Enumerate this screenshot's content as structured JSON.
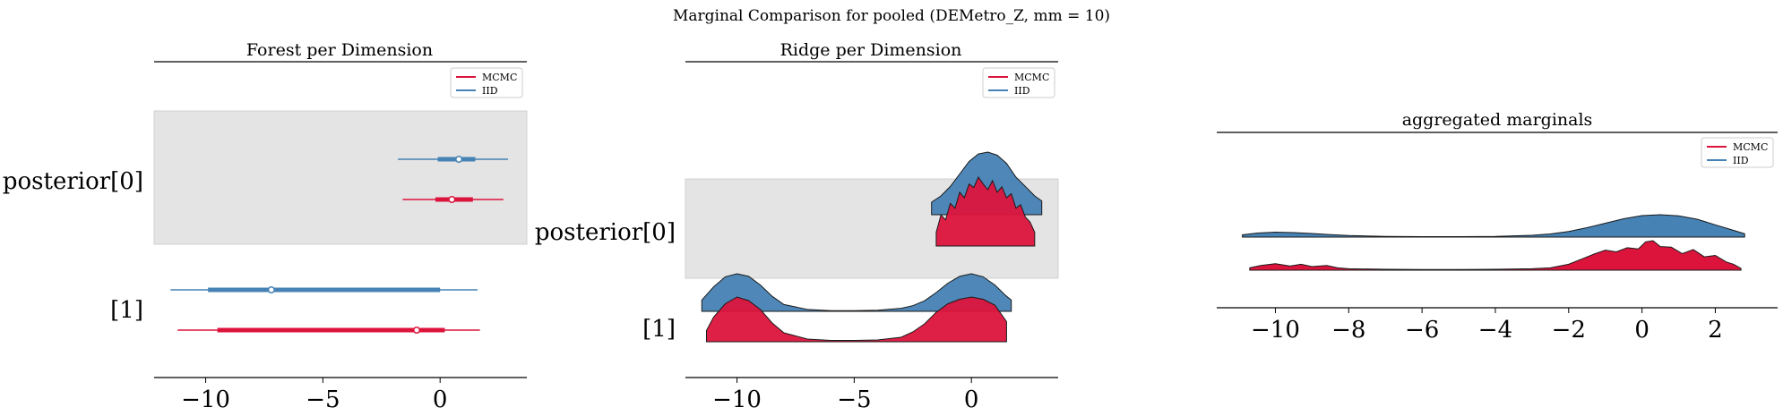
{
  "figure": {
    "suptitle": "Marginal Comparison for pooled (DEMetro_Z, mm = 10)"
  },
  "legend": {
    "mcmc": "MCMC",
    "iid": "IID"
  },
  "colors": {
    "mcmc": "#dc143c",
    "iid": "#4682b4",
    "band": "#e4e4e4"
  },
  "chart_data": [
    {
      "type": "forest",
      "title": "Forest per Dimension",
      "xlim": [
        -12.2,
        3.7
      ],
      "xticks": [
        -10,
        -5,
        0
      ],
      "xtick_labels": [
        "−10",
        "−5",
        "0"
      ],
      "rows": [
        "posterior[0]",
        "[1]"
      ],
      "series": [
        {
          "name": "IID",
          "intervals": [
            {
              "row": "posterior[0]",
              "hdi_94": [
                -1.8,
                2.9
              ],
              "hdi_50": [
                -0.1,
                1.5
              ],
              "median": 0.8
            },
            {
              "row": "[1]",
              "hdi_94": [
                -11.5,
                1.6
              ],
              "hdi_50": [
                -9.9,
                0.0
              ],
              "median": -7.2
            }
          ]
        },
        {
          "name": "MCMC",
          "intervals": [
            {
              "row": "posterior[0]",
              "hdi_94": [
                -1.6,
                2.7
              ],
              "hdi_50": [
                -0.2,
                1.4
              ],
              "median": 0.5
            },
            {
              "row": "[1]",
              "hdi_94": [
                -11.2,
                1.7
              ],
              "hdi_50": [
                -9.5,
                0.2
              ],
              "median": -1.0
            }
          ]
        }
      ]
    },
    {
      "type": "ridge",
      "title": "Ridge per Dimension",
      "xlim": [
        -12.2,
        3.7
      ],
      "xticks": [
        -10,
        -5,
        0
      ],
      "xtick_labels": [
        "−10",
        "−5",
        "0"
      ],
      "rows": [
        "posterior[0]",
        "[1]"
      ],
      "series": [
        {
          "name": "IID",
          "ridges": [
            {
              "row": "posterior[0]",
              "x": [
                -1.7,
                -1.3,
                -0.9,
                -0.5,
                -0.1,
                0.3,
                0.7,
                1.1,
                1.5,
                1.9,
                2.3,
                2.7,
                3.0
              ],
              "density": [
                0.2,
                0.3,
                0.45,
                0.65,
                0.85,
                0.97,
                1.0,
                0.95,
                0.82,
                0.6,
                0.45,
                0.3,
                0.22
              ]
            },
            {
              "row": "[1]",
              "x": [
                -11.5,
                -11.0,
                -10.5,
                -10.0,
                -9.5,
                -9.0,
                -8.5,
                -8.0,
                -7.0,
                -6.0,
                -5.0,
                -4.0,
                -3.0,
                -2.5,
                -2.0,
                -1.5,
                -1.0,
                -0.5,
                0.0,
                0.5,
                1.0,
                1.5,
                1.7
              ],
              "density": [
                0.3,
                0.65,
                0.92,
                1.0,
                0.93,
                0.7,
                0.4,
                0.18,
                0.05,
                0.02,
                0.02,
                0.03,
                0.08,
                0.15,
                0.28,
                0.5,
                0.75,
                0.93,
                1.0,
                0.92,
                0.7,
                0.4,
                0.3
              ]
            }
          ]
        },
        {
          "name": "MCMC",
          "ridges": [
            {
              "row": "posterior[0]",
              "x": [
                -1.5,
                -1.3,
                -1.1,
                -0.9,
                -0.7,
                -0.5,
                -0.3,
                -0.1,
                0.1,
                0.3,
                0.5,
                0.7,
                0.9,
                1.1,
                1.3,
                1.5,
                1.7,
                1.9,
                2.1,
                2.3,
                2.5,
                2.7
              ],
              "density": [
                0.2,
                0.45,
                0.38,
                0.62,
                0.55,
                0.78,
                0.7,
                0.9,
                0.85,
                1.0,
                0.9,
                0.82,
                0.95,
                0.78,
                0.86,
                0.7,
                0.76,
                0.55,
                0.6,
                0.42,
                0.35,
                0.2
              ]
            },
            {
              "row": "[1]",
              "x": [
                -11.3,
                -11.0,
                -10.5,
                -10.0,
                -9.5,
                -9.0,
                -8.5,
                -8.0,
                -7.0,
                -6.0,
                -5.0,
                -4.0,
                -3.0,
                -2.5,
                -2.0,
                -1.5,
                -1.0,
                -0.5,
                0.0,
                0.5,
                1.0,
                1.5
              ],
              "density": [
                0.25,
                0.55,
                0.85,
                1.0,
                0.92,
                0.72,
                0.42,
                0.2,
                0.06,
                0.03,
                0.03,
                0.04,
                0.1,
                0.22,
                0.4,
                0.66,
                0.85,
                0.95,
                1.0,
                0.95,
                0.82,
                0.45
              ]
            }
          ]
        }
      ]
    },
    {
      "type": "area",
      "title": "aggregated marginals",
      "xlim": [
        -11.6,
        3.7
      ],
      "xticks": [
        -10,
        -8,
        -6,
        -4,
        -2,
        0,
        2
      ],
      "xtick_labels": [
        "−10",
        "−8",
        "−6",
        "−4",
        "−2",
        "0",
        "2"
      ],
      "series": [
        {
          "name": "IID",
          "x": [
            -10.9,
            -10.5,
            -10.0,
            -9.5,
            -9.0,
            -8.5,
            -8.0,
            -7.0,
            -6.0,
            -5.0,
            -4.0,
            -3.0,
            -2.5,
            -2.0,
            -1.5,
            -1.0,
            -0.5,
            0.0,
            0.5,
            1.0,
            1.5,
            2.0,
            2.5,
            2.8
          ],
          "density": [
            0.1,
            0.18,
            0.22,
            0.2,
            0.16,
            0.11,
            0.07,
            0.03,
            0.02,
            0.02,
            0.03,
            0.08,
            0.14,
            0.25,
            0.42,
            0.62,
            0.82,
            0.96,
            1.0,
            0.95,
            0.8,
            0.55,
            0.3,
            0.15
          ]
        },
        {
          "name": "MCMC",
          "x": [
            -10.7,
            -10.4,
            -10.0,
            -9.6,
            -9.3,
            -9.0,
            -8.6,
            -8.3,
            -8.0,
            -7.0,
            -6.0,
            -5.0,
            -4.0,
            -3.0,
            -2.5,
            -2.0,
            -1.6,
            -1.3,
            -1.0,
            -0.7,
            -0.4,
            -0.1,
            0.1,
            0.3,
            0.5,
            0.8,
            1.1,
            1.4,
            1.7,
            2.0,
            2.3,
            2.5,
            2.7
          ],
          "density": [
            0.08,
            0.16,
            0.22,
            0.14,
            0.2,
            0.12,
            0.16,
            0.08,
            0.05,
            0.03,
            0.02,
            0.02,
            0.03,
            0.05,
            0.08,
            0.2,
            0.4,
            0.55,
            0.68,
            0.62,
            0.76,
            0.72,
            0.96,
            1.0,
            0.8,
            0.78,
            0.56,
            0.7,
            0.45,
            0.5,
            0.28,
            0.2,
            0.06
          ]
        }
      ]
    }
  ]
}
